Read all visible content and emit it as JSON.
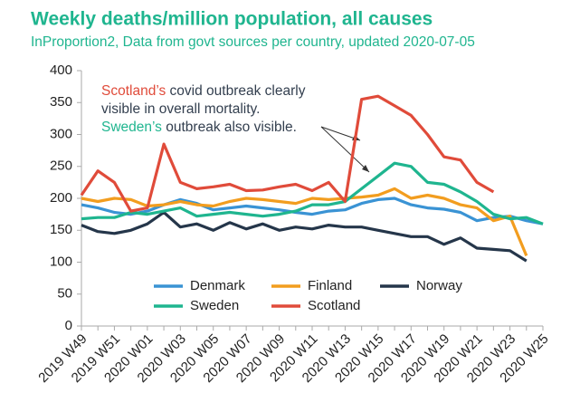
{
  "chart_data": {
    "type": "line",
    "title": "Weekly deaths/million population, all causes",
    "subtitle": "InProportion2, Data from govt sources per country, updated 2020-07-05",
    "annotation": [
      [
        {
          "text": "Scotland’s",
          "color": "#e04b3a"
        },
        {
          "text": " covid outbreak clearly",
          "color": "#333f4f"
        }
      ],
      [
        {
          "text": "visible in overall mortality.",
          "color": "#333f4f"
        }
      ],
      [
        {
          "text": "Sweden’s",
          "color": "#1fb58f"
        },
        {
          "text": " outbreak also visible.",
          "color": "#333f4f"
        }
      ]
    ],
    "categories": [
      "2019 W49",
      null,
      "2019 W51",
      null,
      "2020 W01",
      null,
      "2020 W03",
      null,
      "2020 W05",
      null,
      "2020 W07",
      null,
      "2020 W09",
      null,
      "2020 W11",
      null,
      "2020 W13",
      null,
      "2020 W15",
      null,
      "2020 W17",
      null,
      "2020 W19",
      null,
      "2020 W21",
      null,
      "2020 W23",
      null,
      "2020 W25"
    ],
    "series": [
      {
        "name": "Denmark",
        "color": "#3a93d4",
        "values": [
          190,
          185,
          178,
          175,
          180,
          190,
          198,
          192,
          182,
          185,
          188,
          185,
          182,
          178,
          175,
          180,
          182,
          192,
          198,
          200,
          190,
          185,
          183,
          178,
          165,
          170,
          172,
          165,
          160
        ]
      },
      {
        "name": "Finland",
        "color": "#f29d1f",
        "values": [
          200,
          195,
          200,
          198,
          188,
          190,
          195,
          190,
          188,
          195,
          200,
          198,
          195,
          192,
          200,
          198,
          200,
          202,
          205,
          215,
          200,
          205,
          200,
          190,
          185,
          165,
          172,
          110,
          null
        ]
      },
      {
        "name": "Norway",
        "color": "#25364a",
        "values": [
          158,
          148,
          145,
          150,
          160,
          178,
          155,
          160,
          150,
          162,
          152,
          160,
          150,
          155,
          152,
          158,
          155,
          155,
          150,
          145,
          140,
          140,
          128,
          138,
          122,
          120,
          118,
          102,
          null
        ]
      },
      {
        "name": "Sweden",
        "color": "#1fb58f",
        "values": [
          168,
          170,
          170,
          178,
          175,
          180,
          185,
          172,
          175,
          178,
          175,
          172,
          175,
          180,
          190,
          190,
          195,
          215,
          235,
          255,
          250,
          225,
          222,
          210,
          195,
          175,
          168,
          170,
          160
        ]
      },
      {
        "name": "Scotland",
        "color": "#e04b3a",
        "values": [
          205,
          243,
          225,
          180,
          185,
          285,
          225,
          215,
          218,
          222,
          212,
          213,
          218,
          222,
          212,
          225,
          195,
          355,
          360,
          345,
          330,
          300,
          265,
          260,
          225,
          210,
          null,
          null,
          null
        ]
      }
    ],
    "ylim": [
      0,
      400
    ],
    "yticks": [
      0,
      50,
      100,
      150,
      200,
      250,
      300,
      350,
      400
    ]
  }
}
